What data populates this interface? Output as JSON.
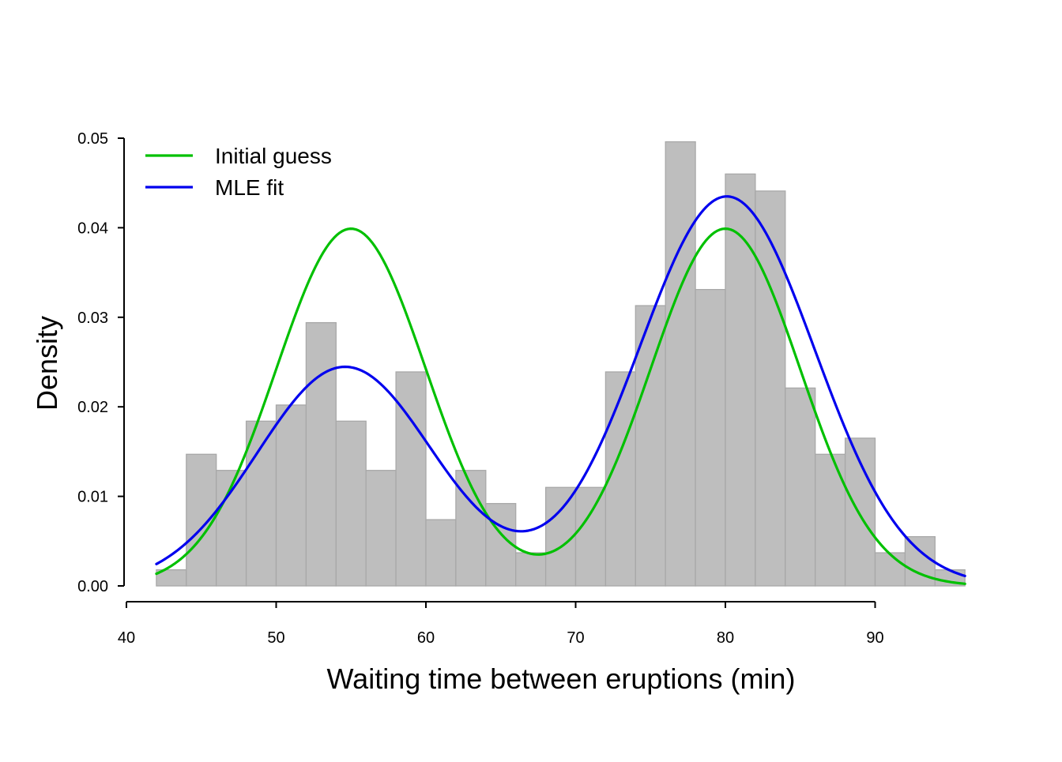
{
  "chart_data": {
    "type": "bar",
    "title": "",
    "xlabel": "Waiting time between eruptions (min)",
    "ylabel": "Density",
    "xlim": [
      40,
      90
    ],
    "ylim": [
      0,
      0.05
    ],
    "x_ticks": [
      "40",
      "50",
      "60",
      "70",
      "80",
      "90"
    ],
    "y_ticks": [
      "0.00",
      "0.01",
      "0.02",
      "0.03",
      "0.04",
      "0.05"
    ],
    "grid": false,
    "legend_position": "top-left",
    "histogram": {
      "bin_width": 2,
      "bin_start": 42,
      "fill_color": "#bebebe",
      "edge_color": "#a8a8a8",
      "bins": [
        {
          "x0": 42,
          "x1": 44,
          "density": 0.0018
        },
        {
          "x0": 44,
          "x1": 46,
          "density": 0.0147
        },
        {
          "x0": 46,
          "x1": 48,
          "density": 0.0129
        },
        {
          "x0": 48,
          "x1": 50,
          "density": 0.0184
        },
        {
          "x0": 50,
          "x1": 52,
          "density": 0.0202
        },
        {
          "x0": 52,
          "x1": 54,
          "density": 0.0294
        },
        {
          "x0": 54,
          "x1": 56,
          "density": 0.0184
        },
        {
          "x0": 56,
          "x1": 58,
          "density": 0.0129
        },
        {
          "x0": 58,
          "x1": 60,
          "density": 0.0239
        },
        {
          "x0": 60,
          "x1": 62,
          "density": 0.0074
        },
        {
          "x0": 62,
          "x1": 64,
          "density": 0.0129
        },
        {
          "x0": 64,
          "x1": 66,
          "density": 0.0092
        },
        {
          "x0": 66,
          "x1": 68,
          "density": 0.0037
        },
        {
          "x0": 68,
          "x1": 70,
          "density": 0.011
        },
        {
          "x0": 70,
          "x1": 72,
          "density": 0.011
        },
        {
          "x0": 72,
          "x1": 74,
          "density": 0.0239
        },
        {
          "x0": 74,
          "x1": 76,
          "density": 0.0313
        },
        {
          "x0": 76,
          "x1": 78,
          "density": 0.0496
        },
        {
          "x0": 78,
          "x1": 80,
          "density": 0.0331
        },
        {
          "x0": 80,
          "x1": 82,
          "density": 0.046
        },
        {
          "x0": 82,
          "x1": 84,
          "density": 0.0441
        },
        {
          "x0": 84,
          "x1": 86,
          "density": 0.0221
        },
        {
          "x0": 86,
          "x1": 88,
          "density": 0.0147
        },
        {
          "x0": 88,
          "x1": 90,
          "density": 0.0165
        },
        {
          "x0": 90,
          "x1": 92,
          "density": 0.0037
        },
        {
          "x0": 92,
          "x1": 94,
          "density": 0.0055
        },
        {
          "x0": 94,
          "x1": 96,
          "density": 0.0018
        }
      ]
    },
    "series": [
      {
        "name": "Initial guess",
        "color": "#00c000",
        "x_range": [
          42,
          96
        ],
        "mixture": [
          {
            "weight": 0.5,
            "mean": 55,
            "sd": 5
          },
          {
            "weight": 0.5,
            "mean": 80,
            "sd": 5
          }
        ]
      },
      {
        "name": "MLE fit",
        "color": "#0000ee",
        "x_range": [
          42,
          96
        ],
        "mixture": [
          {
            "weight": 0.36,
            "mean": 54.6,
            "sd": 5.87
          },
          {
            "weight": 0.64,
            "mean": 80.1,
            "sd": 5.87
          }
        ]
      }
    ]
  }
}
